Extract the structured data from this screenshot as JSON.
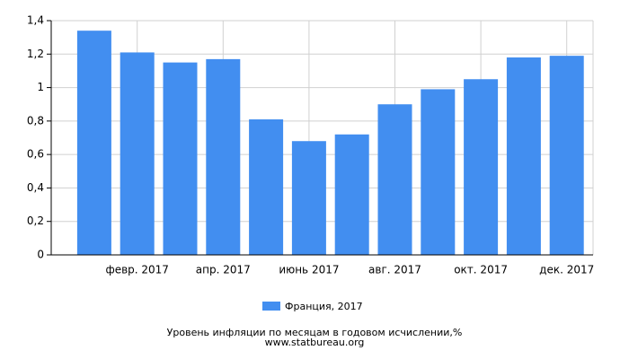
{
  "chart_data": {
    "type": "bar",
    "title": "Уровень инфляции по месяцам в годовом исчислении,%",
    "source": "www.statbureau.org",
    "categories": [
      null,
      "февр. 2017",
      null,
      "апр. 2017",
      null,
      "июнь 2017",
      null,
      "авг. 2017",
      null,
      "окт. 2017",
      null,
      "дек. 2017"
    ],
    "series": [
      {
        "name": "Франция, 2017",
        "color": "#428ef0",
        "values": [
          1.34,
          1.21,
          1.15,
          1.17,
          0.81,
          0.68,
          0.72,
          0.9,
          0.99,
          1.05,
          1.18,
          1.19
        ]
      }
    ],
    "ylim": [
      0,
      1.4
    ],
    "yticks": [
      0,
      {
        "value": 0.2,
        "label": "0,2"
      },
      {
        "value": 0.4,
        "label": "0,4"
      },
      {
        "value": 0.6,
        "label": "0,6"
      },
      {
        "value": 0.8,
        "label": "0,8"
      },
      1,
      {
        "value": 1.2,
        "label": "1,2"
      },
      {
        "value": 1.4,
        "label": "1,4"
      }
    ],
    "grid": true,
    "legend": "bottom"
  }
}
